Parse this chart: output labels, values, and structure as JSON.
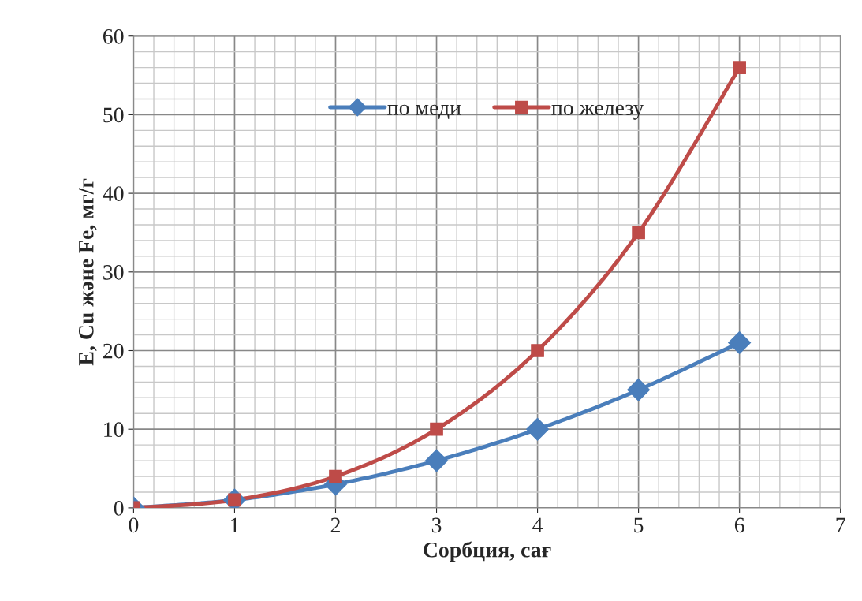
{
  "chart_data": {
    "type": "line",
    "xlabel": "Сорбция, сағ",
    "ylabel": "E, Cu және Fe, мг/г",
    "x": [
      0,
      1,
      2,
      3,
      4,
      5,
      6
    ],
    "series": [
      {
        "name": "по меди",
        "color": "#4a7ebb",
        "marker": "diamond",
        "values": [
          0,
          1,
          3,
          6,
          10,
          15,
          21
        ]
      },
      {
        "name": "по железу",
        "color": "#be4b48",
        "marker": "square",
        "values": [
          0,
          1,
          4,
          10,
          20,
          35,
          56
        ]
      }
    ],
    "xlim": [
      0,
      7
    ],
    "xticks": [
      0,
      1,
      2,
      3,
      4,
      5,
      6,
      7
    ],
    "ylim": [
      0,
      60
    ],
    "yticks": [
      0,
      10,
      20,
      30,
      40,
      50,
      60
    ],
    "grid": true,
    "legend": "top",
    "line_style": "solid"
  }
}
